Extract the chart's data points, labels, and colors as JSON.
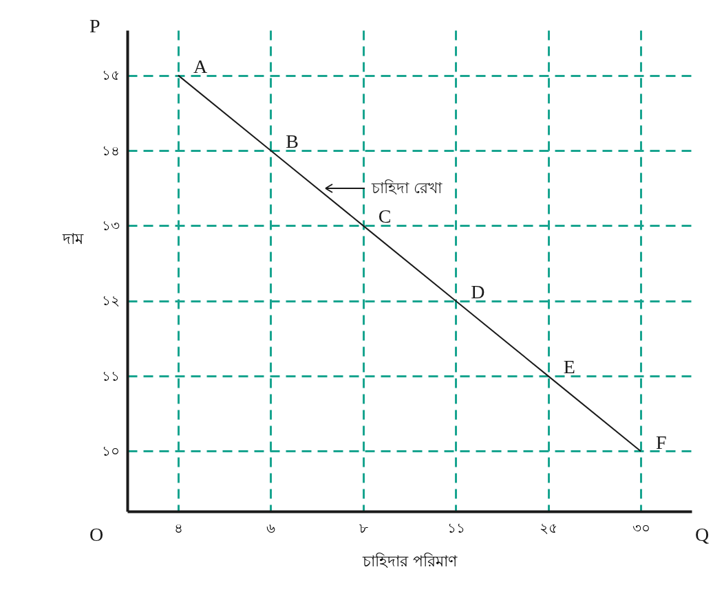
{
  "chart_data": {
    "type": "line",
    "xlabel": "চাহিদার পরিমাণ",
    "ylabel": "দাম",
    "categories": [
      "৪",
      "৬",
      "৮",
      "১১",
      "২৫",
      "৩০"
    ],
    "series": [
      {
        "color": "#1a1a1a",
        "values": [
          15,
          14,
          13,
          12,
          11,
          10
        ]
      }
    ],
    "ylim": [
      9.2,
      15.6
    ],
    "yticks": [
      {
        "value": 10,
        "label": "১০"
      },
      {
        "value": 11,
        "label": "১১"
      },
      {
        "value": 12,
        "label": "১২"
      },
      {
        "value": 13,
        "label": "১৩"
      },
      {
        "value": 14,
        "label": "১৪"
      },
      {
        "value": 15,
        "label": "১৫"
      }
    ],
    "grid": true,
    "annotations": [
      "P",
      "Q",
      "O",
      "চাহিদা রেখা",
      {
        "text": "A",
        "x": "৪",
        "y": 15
      },
      {
        "text": "B",
        "x": "৬",
        "y": 14
      },
      {
        "text": "C",
        "x": "৮",
        "y": 13
      },
      {
        "text": "D",
        "x": "১১",
        "y": 12
      },
      {
        "text": "E",
        "x": "২৫",
        "y": 11
      },
      {
        "text": "F",
        "x": "৩০",
        "y": 10
      }
    ]
  }
}
